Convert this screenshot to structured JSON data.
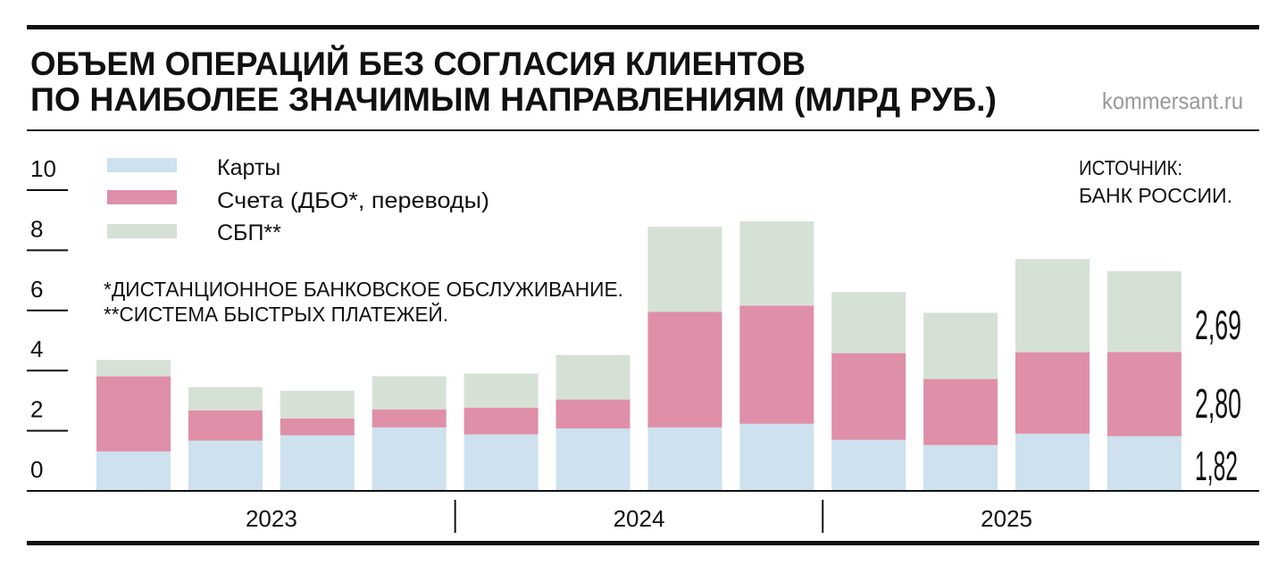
{
  "header": {
    "title_line1": "ОБЪЕМ ОПЕРАЦИЙ БЕЗ СОГЛАСИЯ КЛИЕНТОВ",
    "title_line2": "ПО НАИБОЛЕЕ ЗНАЧИМЫМ НАПРАВЛЕНИЯМ (МЛРД РУБ.)",
    "site": "kommersant.ru"
  },
  "source": {
    "line1": "ИСТОЧНИК:",
    "line2": "БАНК РОССИИ."
  },
  "footnotes": [
    "*ДИСТАНЦИОННОЕ БАНКОВСКОЕ ОБСЛУЖИВАНИЕ.",
    "**СИСТЕМА БЫСТРЫХ ПЛАТЕЖЕЙ."
  ],
  "chart_data": {
    "type": "bar",
    "stacked": true,
    "title": "ОБЪЕМ ОПЕРАЦИЙ БЕЗ СОГЛАСИЯ КЛИЕНТОВ ПО НАИБОЛЕЕ ЗНАЧИМЫМ НАПРАВЛЕНИЯМ (МЛРД РУБ.)",
    "ylim": [
      0,
      10
    ],
    "yticks": [
      "0",
      "2",
      "4",
      "6",
      "8",
      "10"
    ],
    "year_groups": [
      {
        "label": "2023",
        "bars": 4
      },
      {
        "label": "2024",
        "bars": 4
      },
      {
        "label": "2025",
        "bars": 4
      }
    ],
    "legend_position": "top-left",
    "series": [
      {
        "name": "Карты",
        "color": "#cde1ee",
        "values": [
          1.31,
          1.67,
          1.85,
          2.11,
          1.88,
          2.08,
          2.11,
          2.23,
          1.7,
          1.52,
          1.9,
          1.82
        ]
      },
      {
        "name": "Счета (ДБО*, переводы)",
        "color": "#df8fa8",
        "values": [
          2.5,
          1.01,
          0.56,
          0.6,
          0.89,
          0.96,
          3.84,
          3.93,
          2.88,
          2.2,
          2.71,
          2.8
        ]
      },
      {
        "name": "СБП**",
        "color": "#d6e1d6",
        "values": [
          0.54,
          0.77,
          0.92,
          1.1,
          1.13,
          1.48,
          2.83,
          2.8,
          2.03,
          2.2,
          3.1,
          2.69
        ]
      }
    ],
    "last_bar_labels": [
      "1,82",
      "2,80",
      "2,69"
    ]
  }
}
